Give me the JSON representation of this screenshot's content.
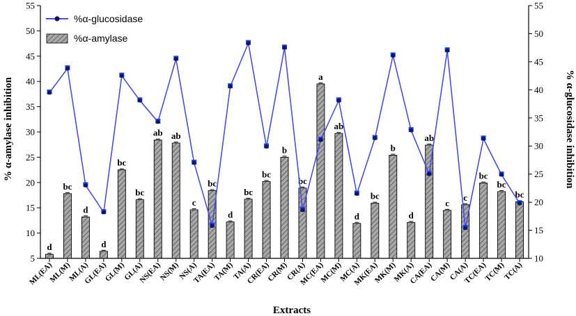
{
  "chart_data": {
    "type": "bar",
    "xlabel": "Extracts",
    "ylabel": "% α-amylase inhibition",
    "y2label": "% α-glucosidase inhibition",
    "ylim": [
      5,
      55
    ],
    "y2lim": [
      10,
      55
    ],
    "yticks": [
      5,
      10,
      15,
      20,
      25,
      30,
      35,
      40,
      45,
      50,
      55
    ],
    "y2ticks": [
      10,
      15,
      20,
      25,
      30,
      35,
      40,
      45,
      50,
      55
    ],
    "categories": [
      "ML(EA)",
      "ML(M)",
      "ML(A)",
      "GL(EA)",
      "GL(M)",
      "GL(A)",
      "NS(EA)",
      "NS(M)",
      "NS(A)",
      "TA(EA)",
      "TA(M)",
      "TA(A)",
      "CR(EA)",
      "CR(M)",
      "CR(A)",
      "MC(EA)",
      "MC(M)",
      "MC(A)",
      "MK(EA)",
      "MK(M)",
      "MK(A)",
      "CA(EA)",
      "CA(M)",
      "CA(A)",
      "TC(EA)",
      "TC(M)",
      "TC(A)"
    ],
    "legend": {
      "position": "top-left",
      "line_label": "%α-glucosidase",
      "bar_label": "%α-amylase"
    },
    "colors": {
      "line": "#4b4be6",
      "marker": "#1f3fff",
      "bar_fill": "#9a9a9a",
      "bar_hatch": "#555555"
    },
    "series": [
      {
        "name": "%α-amylase",
        "axis": "left",
        "type": "bar",
        "values": [
          5.8,
          17.8,
          13.2,
          6.4,
          22.5,
          16.6,
          28.4,
          27.8,
          14.6,
          18.4,
          12.2,
          16.7,
          20.2,
          25.0,
          18.9,
          39.5,
          29.7,
          11.9,
          15.9,
          25.4,
          12.1,
          27.4,
          14.5,
          15.6,
          19.9,
          18.2,
          16.2
        ],
        "labels": [
          "d",
          "bc",
          "d",
          "d",
          "bc",
          "bc",
          "ab",
          "ab",
          "c",
          "bc",
          "d",
          "bc",
          "bc",
          "b",
          "bc",
          "a",
          "ab",
          "d",
          "bc",
          "b",
          "d",
          "ab",
          "c",
          "c",
          "bc",
          "bc",
          "bc"
        ]
      },
      {
        "name": "%α-glucosidase",
        "axis": "right",
        "type": "line",
        "values": [
          39.5,
          43.8,
          23.0,
          18.2,
          42.5,
          38.1,
          34.3,
          45.5,
          27.0,
          15.8,
          40.6,
          48.3,
          29.9,
          47.5,
          18.6,
          31.1,
          38.1,
          21.5,
          31.4,
          46.1,
          32.8,
          25.0,
          47.0,
          15.4,
          31.3,
          24.9,
          19.8
        ]
      }
    ]
  }
}
